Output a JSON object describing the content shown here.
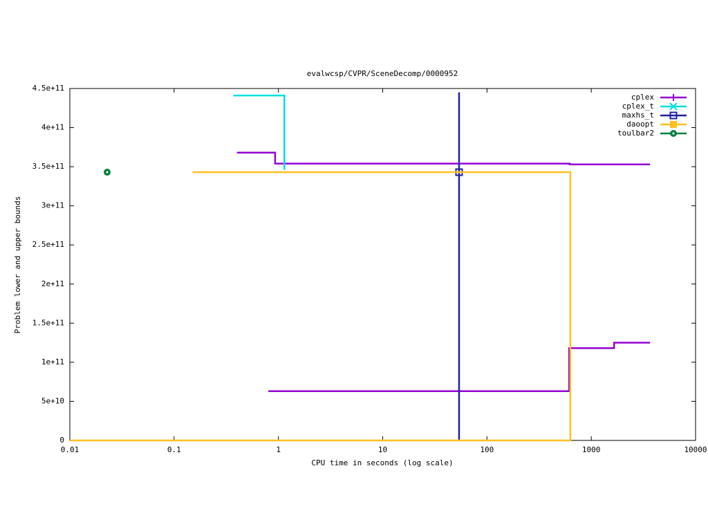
{
  "chart_data": {
    "type": "line",
    "title": "evalwcsp/CVPR/SceneDecomp/0000952",
    "x_label": "CPU time in seconds (log scale)",
    "y_label": "Problem lower and upper bounds",
    "x_log": true,
    "legend": "top-right",
    "grid": false,
    "xlim": [
      0.01,
      10000
    ],
    "xticks": [
      0.01,
      0.1,
      1,
      10,
      100,
      1000,
      10000
    ],
    "ylim": [
      0,
      450000000000
    ],
    "yticks": [
      0,
      {
        "value": 50000000000,
        "label": "5e+10"
      },
      {
        "value": 100000000000,
        "label": "1e+11"
      },
      {
        "value": 150000000000,
        "label": "1.5e+11"
      },
      {
        "value": 200000000000,
        "label": "2e+11"
      },
      {
        "value": 250000000000,
        "label": "2.5e+11"
      },
      {
        "value": 300000000000,
        "label": "3e+11"
      },
      {
        "value": 350000000000,
        "label": "3.5e+11"
      },
      {
        "value": 400000000000,
        "label": "4e+11"
      },
      {
        "value": 450000000000,
        "label": "4.5e+11"
      }
    ],
    "series": [
      {
        "name": "cplex",
        "color": "#9400d3",
        "marker": "plus",
        "x": [
          0.4,
          0.93,
          620,
          3660,
          null,
          0.8,
          614,
          1656,
          3660
        ],
        "values": [
          368000000000,
          354000000000,
          353000000000,
          353000000000,
          null,
          63000000000,
          118000000000,
          125000000000,
          125000000000
        ]
      },
      {
        "name": "cplex_t",
        "color": "#00e0e0",
        "marker": "cross",
        "x": [
          0.37,
          1.14
        ],
        "values": [
          441000000000,
          346000000000
        ]
      },
      {
        "name": "maxhs_t",
        "color": "#2020a0",
        "marker": "square",
        "x": [
          54
        ],
        "values": [
          343000000000
        ],
        "lower": [
          0
        ],
        "upper": [
          445000000000
        ]
      },
      {
        "name": "daoopt",
        "color": "#ffc020",
        "marker": "filled-square",
        "x": [
          0.15,
          630,
          630,
          0.01
        ],
        "values": [
          343000000000,
          343000000000,
          0,
          0
        ]
      },
      {
        "name": "toulbar2",
        "color": "#008040",
        "marker": "circle",
        "x": [
          0.0228
        ],
        "values": [
          343000000000
        ]
      }
    ]
  }
}
